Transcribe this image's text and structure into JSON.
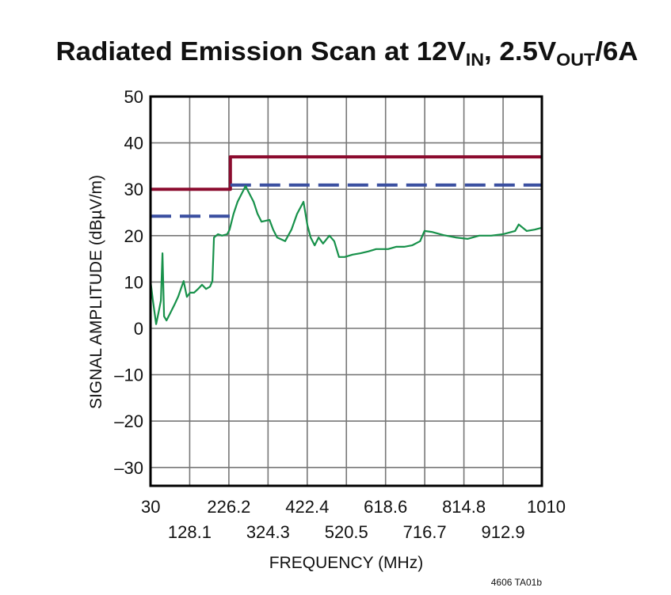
{
  "chart_data": {
    "type": "line",
    "title": {
      "parts": [
        {
          "text": "Radiated Emission Scan at 12V",
          "sub": false
        },
        {
          "text": "IN",
          "sub": true
        },
        {
          "text": ", 2.5V",
          "sub": false
        },
        {
          "text": "OUT",
          "sub": true
        },
        {
          "text": "/6A",
          "sub": false
        }
      ]
    },
    "xlabel": "FREQUENCY (MHz)",
    "ylabel": "SIGNAL AMPLITUDE (dBµV/m)",
    "xlim": [
      30,
      1010
    ],
    "ylim": [
      -34,
      50
    ],
    "grid": true,
    "xticks": [
      "30",
      "128.1",
      "226.2",
      "324.3",
      "422.4",
      "520.5",
      "618.6",
      "716.7",
      "814.8",
      "912.9",
      "1010"
    ],
    "xtick_values": [
      30,
      128.1,
      226.2,
      324.3,
      422.4,
      520.5,
      618.6,
      716.7,
      814.8,
      912.9,
      1010
    ],
    "yticks": [
      "50",
      "40",
      "30",
      "20",
      "10",
      "0",
      "–10",
      "–20",
      "–30"
    ],
    "ytick_values": [
      50,
      40,
      30,
      20,
      10,
      0,
      -10,
      -20,
      -30
    ],
    "series": [
      {
        "style": "solid",
        "color": "#8b0b2e",
        "x": [
          30,
          230,
          230,
          1010
        ],
        "y": [
          30,
          30,
          37,
          37
        ]
      },
      {
        "style": "dashed",
        "color": "#3a4fa0",
        "x": [
          30,
          230,
          230,
          1010
        ],
        "y": [
          24.2,
          24.2,
          30.9,
          30.9
        ],
        "broken_at_step": true
      },
      {
        "style": "solid",
        "color": "#17914a",
        "x": [
          30,
          36,
          44,
          50,
          56,
          60,
          64,
          70,
          80,
          90,
          99,
          113,
          121,
          129,
          139,
          149,
          159,
          169,
          179,
          185,
          189,
          199,
          209,
          222,
          228,
          238,
          248,
          258,
          268,
          278,
          288,
          298,
          308,
          328,
          337,
          347,
          367,
          383,
          397,
          413,
          423,
          431,
          441,
          451,
          462,
          478,
          490,
          502,
          516,
          536,
          556,
          576,
          595,
          625,
          645,
          665,
          685,
          705,
          716,
          734,
          764,
          794,
          824,
          853,
          883,
          913,
          943,
          952,
          972,
          992,
          1010
        ],
        "y": [
          10.2,
          6.0,
          0.9,
          3.4,
          6.0,
          16.2,
          2.6,
          1.7,
          3.4,
          5.1,
          6.8,
          10.2,
          6.8,
          7.7,
          7.7,
          8.5,
          9.4,
          8.5,
          9.0,
          10.2,
          19.6,
          20.3,
          20.0,
          20.3,
          21.3,
          24.7,
          27.3,
          29.0,
          30.7,
          29.0,
          27.3,
          24.7,
          23.0,
          23.4,
          21.3,
          19.6,
          18.8,
          21.3,
          24.7,
          27.3,
          22.2,
          19.6,
          17.9,
          19.6,
          18.3,
          20.0,
          18.8,
          15.4,
          15.4,
          15.9,
          16.2,
          16.6,
          17.1,
          17.1,
          17.6,
          17.6,
          17.9,
          18.8,
          21.0,
          20.8,
          20.1,
          19.6,
          19.3,
          20.0,
          20.0,
          20.3,
          21.0,
          22.4,
          21.0,
          21.3,
          21.7
        ]
      }
    ],
    "footnote": "4606 TA01b"
  }
}
